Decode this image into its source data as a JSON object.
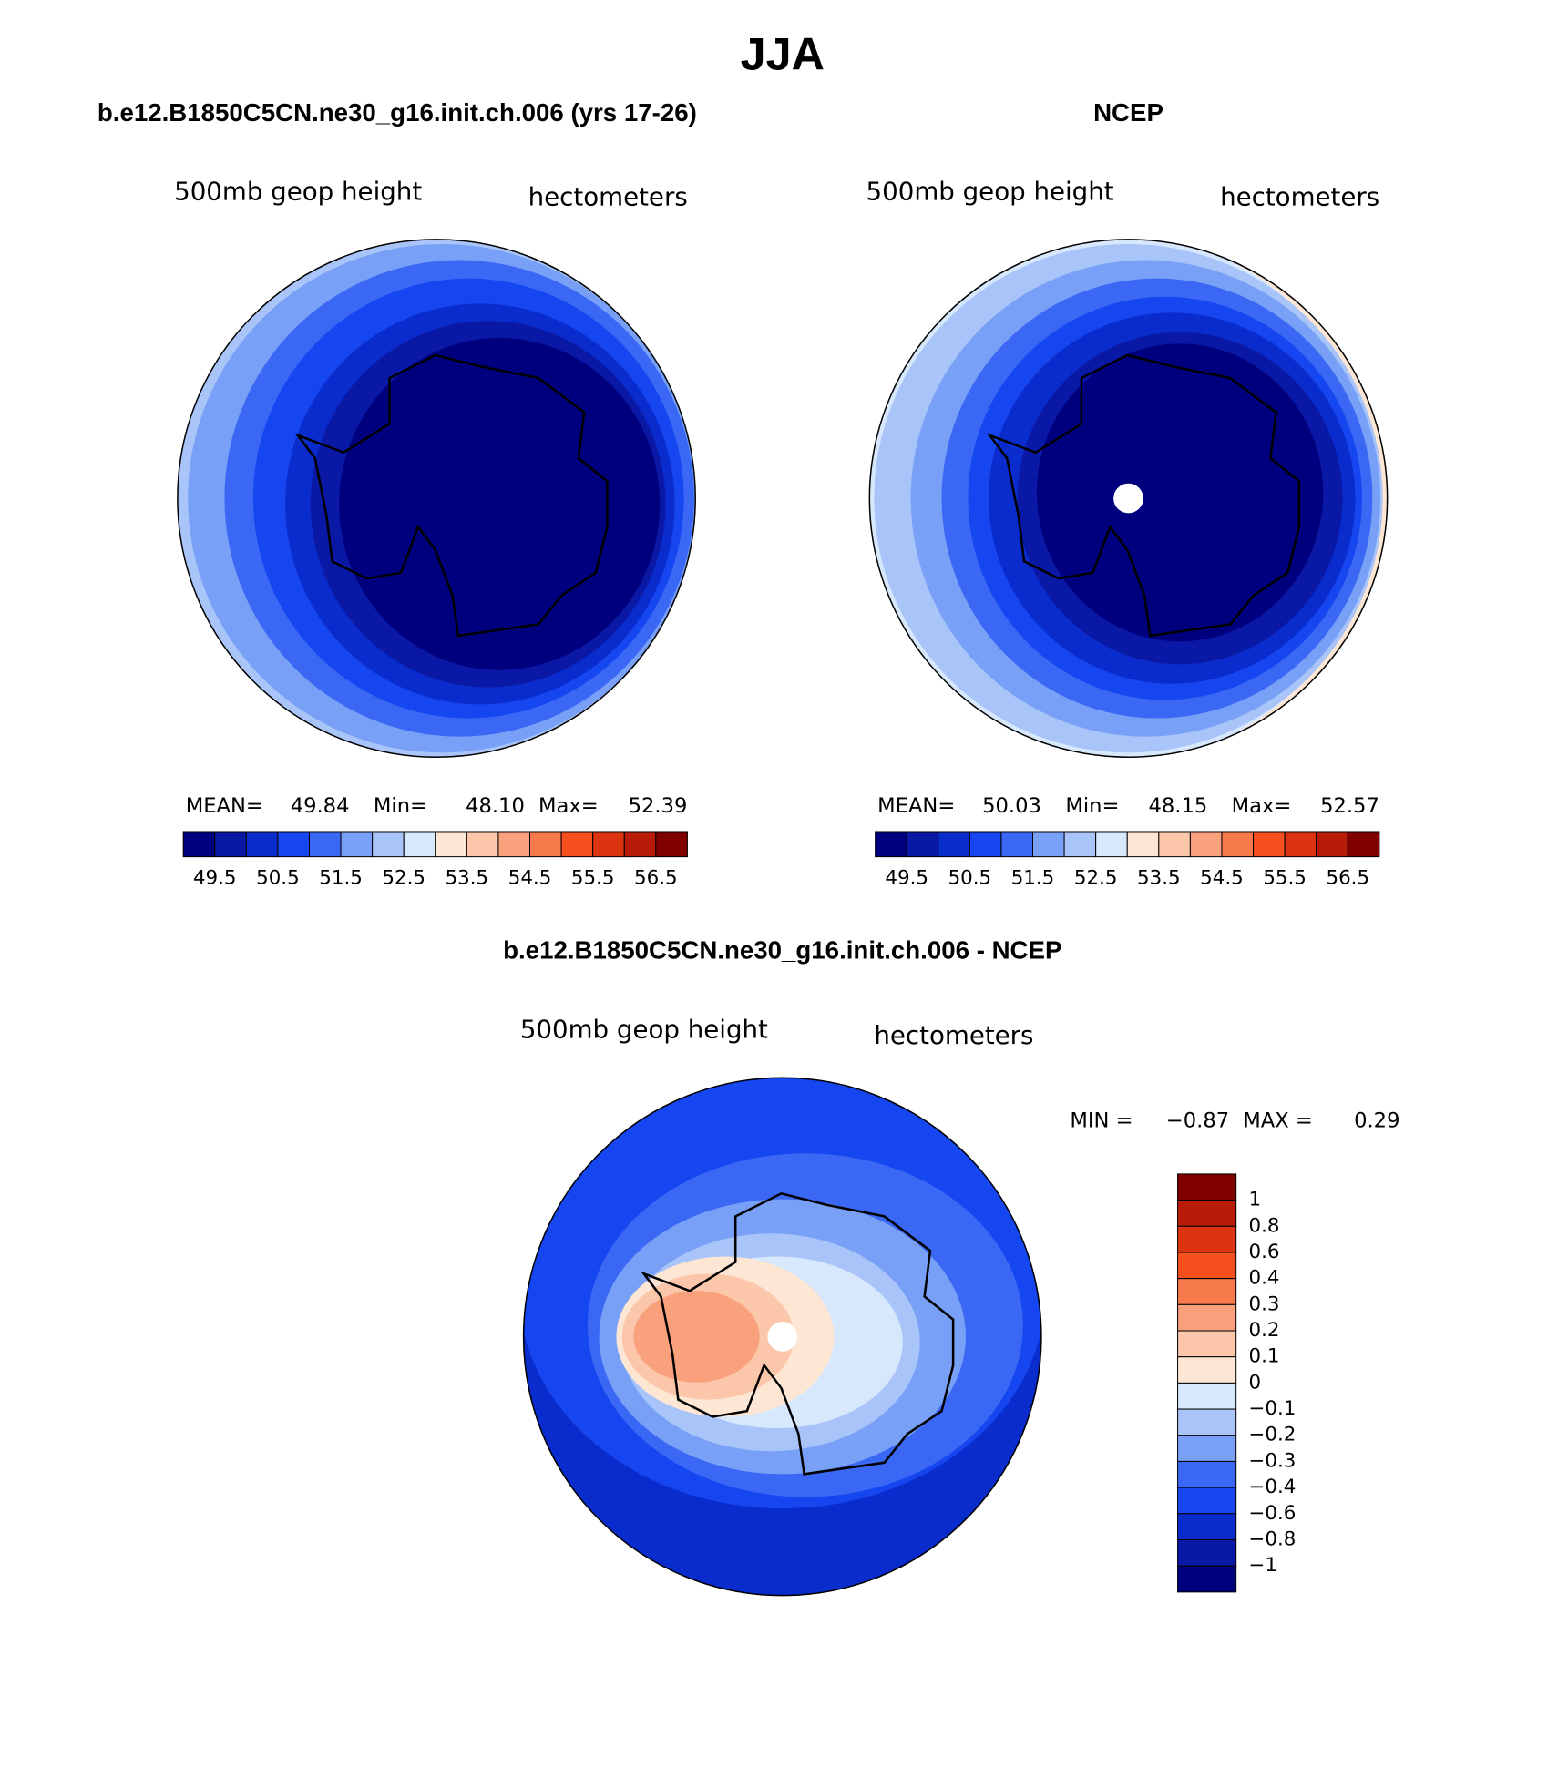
{
  "title": "JJA",
  "panels": [
    {
      "title": "b.e12.B1850C5CN.ne30_g16.init.ch.006 (yrs 17-26)",
      "left_label": "500mb geop height",
      "right_label": "hectometers",
      "stats": [
        {
          "label": "MEAN=",
          "value": "49.84"
        },
        {
          "label": "Min=",
          "value": "48.10"
        },
        {
          "label": "Max=",
          "value": "52.39"
        }
      ]
    },
    {
      "title": "NCEP",
      "left_label": "500mb geop height",
      "right_label": "hectometers",
      "stats": [
        {
          "label": "MEAN=",
          "value": "50.03"
        },
        {
          "label": "Min=",
          "value": "48.15"
        },
        {
          "label": "Max=",
          "value": "52.57"
        }
      ]
    },
    {
      "title": "b.e12.B1850C5CN.ne30_g16.init.ch.006 - NCEP",
      "left_label": "500mb geop height",
      "right_label": "hectometers",
      "stats": [
        {
          "label": "MIN =",
          "value": "−0.87"
        },
        {
          "label": "MAX =",
          "value": "0.29"
        }
      ]
    }
  ],
  "colorbar": {
    "colors": [
      "#00007f",
      "#0a18a6",
      "#0a2ccc",
      "#1646ef",
      "#3a68f5",
      "#78a0f6",
      "#a8c4f8",
      "#d8e8fc",
      "#fde6d4",
      "#fcc6aa",
      "#f9a07c",
      "#f77a4c",
      "#f5501e",
      "#dc3410",
      "#b81c08",
      "#800000"
    ],
    "labels": [
      "49.5",
      "50.5",
      "51.5",
      "52.5",
      "53.5",
      "54.5",
      "55.5",
      "56.5"
    ]
  },
  "diff_colorbar": {
    "colors": [
      "#800000",
      "#b81c08",
      "#dc3410",
      "#f5501e",
      "#f77a4c",
      "#f9a07c",
      "#fcc6aa",
      "#fde6d4",
      "#d8e8fc",
      "#a8c4f8",
      "#78a0f6",
      "#3a68f5",
      "#1646ef",
      "#0a2ccc",
      "#0a18a6",
      "#00007f"
    ],
    "labels": [
      "1",
      "0.8",
      "0.6",
      "0.4",
      "0.3",
      "0.2",
      "0.1",
      "0",
      "−0.1",
      "−0.2",
      "−0.3",
      "−0.4",
      "−0.6",
      "−0.8",
      "−1"
    ]
  }
}
